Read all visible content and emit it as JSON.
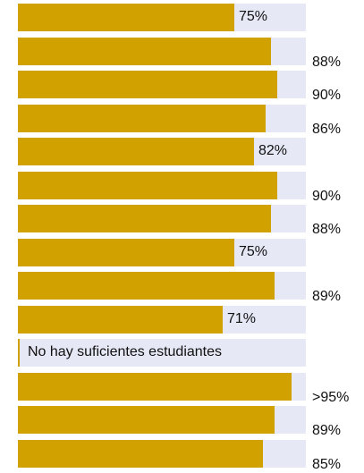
{
  "chart_data": {
    "type": "bar",
    "orientation": "horizontal",
    "xlim": [
      0,
      100
    ],
    "colors": {
      "bar": "#d1a100",
      "track": "#e6e8f6",
      "text": "#111111"
    },
    "rows": [
      {
        "value": 75,
        "label": "75%"
      },
      {
        "value": 88,
        "label": "88%"
      },
      {
        "value": 90,
        "label": "90%"
      },
      {
        "value": 86,
        "label": "86%"
      },
      {
        "value": 82,
        "label": "82%"
      },
      {
        "value": 90,
        "label": "90%"
      },
      {
        "value": 88,
        "label": "88%"
      },
      {
        "value": 75,
        "label": "75%"
      },
      {
        "value": 89,
        "label": "89%"
      },
      {
        "value": 71,
        "label": "71%"
      },
      {
        "value": null,
        "label": "No hay suficientes estudiantes"
      },
      {
        "value": 95,
        "label": ">95%"
      },
      {
        "value": 89,
        "label": "89%"
      },
      {
        "value": 85,
        "label": "85%"
      }
    ]
  }
}
